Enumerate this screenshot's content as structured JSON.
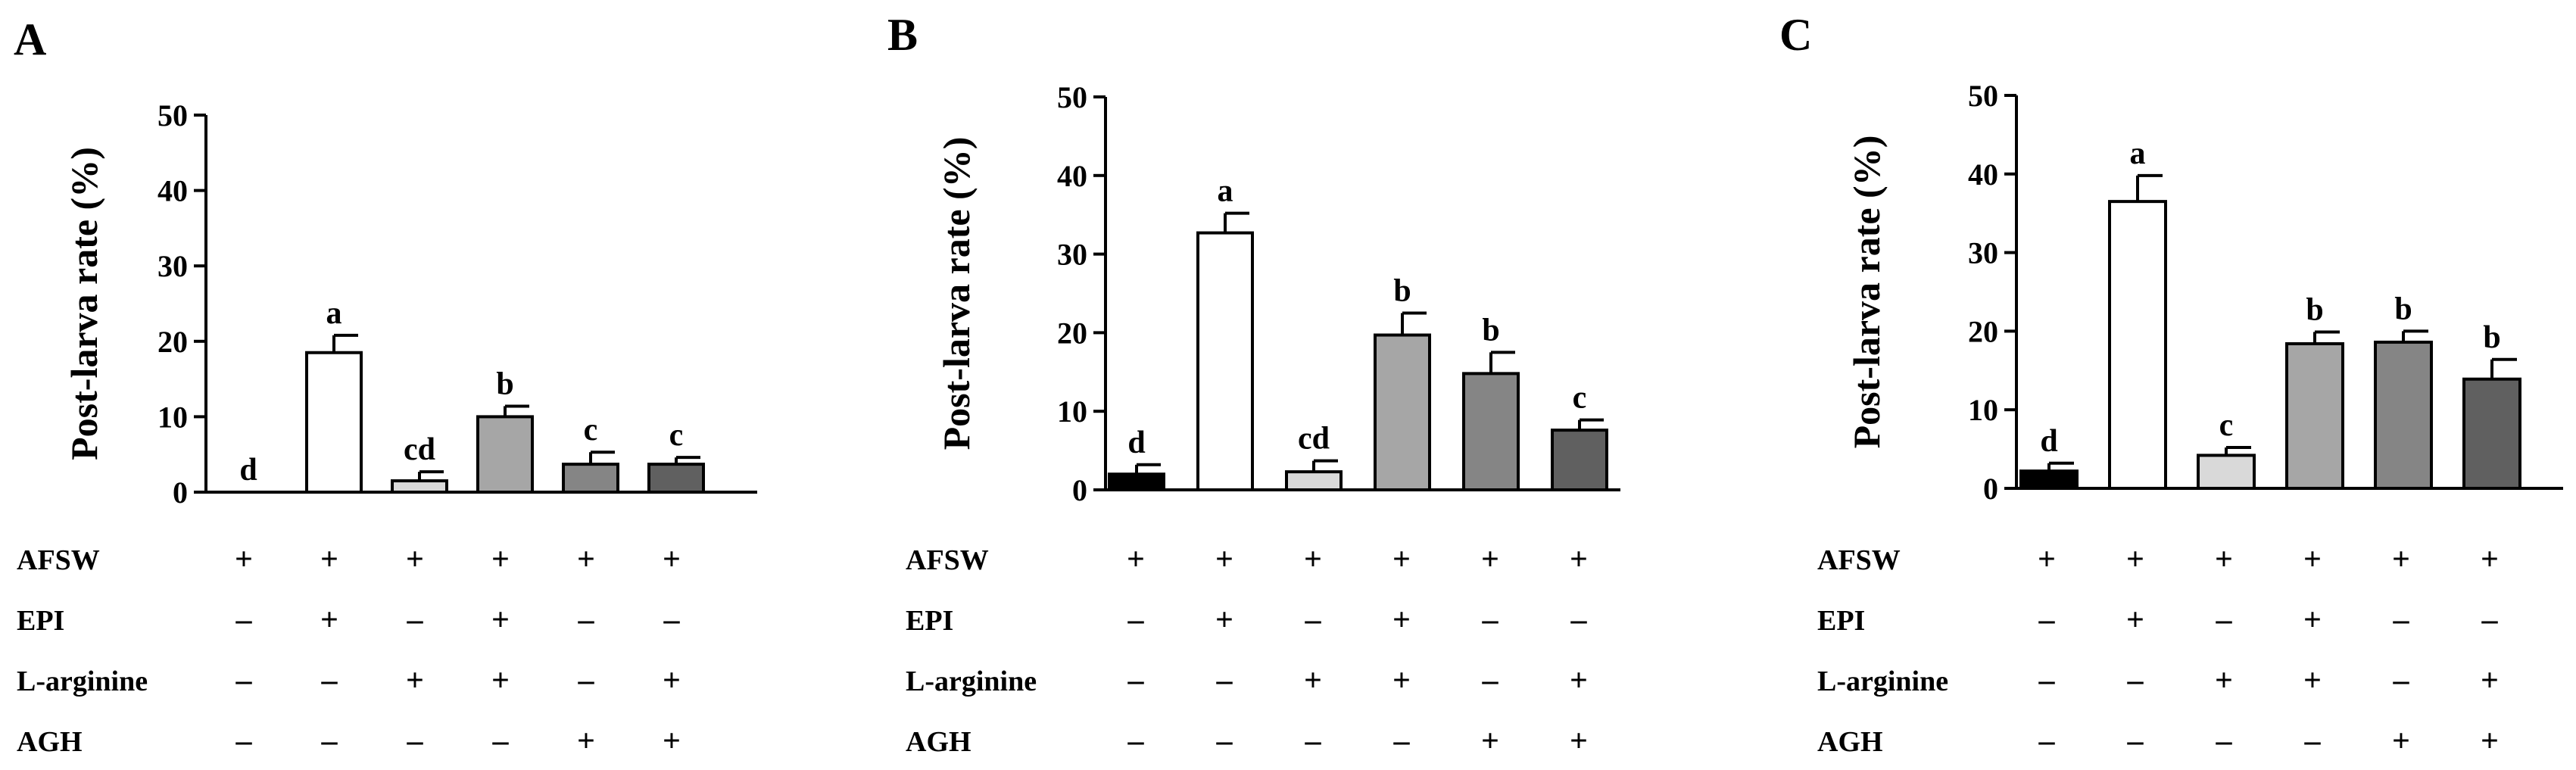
{
  "figure": {
    "row_labels": [
      "AFSW",
      "EPI",
      "L-arginine",
      "AGH"
    ],
    "treatment_matrix": [
      [
        "+",
        "+",
        "+",
        "+",
        "+",
        "+"
      ],
      [
        "–",
        "+",
        "–",
        "+",
        "–",
        "–"
      ],
      [
        "–",
        "–",
        "+",
        "+",
        "–",
        "+"
      ],
      [
        "–",
        "–",
        "–",
        "–",
        "+",
        "+"
      ]
    ],
    "bar_colors": [
      "#000000",
      "#ffffff",
      "#d9d9d9",
      "#a6a6a6",
      "#858585",
      "#606060"
    ]
  },
  "chart_data": [
    {
      "type": "bar",
      "panel": "A",
      "ylabel": "Post-larva rate (%)",
      "ylim": [
        0,
        50
      ],
      "yticks": [
        0,
        10,
        20,
        30,
        40,
        50
      ],
      "values": [
        0,
        18.5,
        1.5,
        10.0,
        3.7,
        3.7
      ],
      "errors": [
        0,
        2.3,
        1.2,
        1.4,
        1.6,
        0.9
      ],
      "letters": [
        "d",
        "a",
        "cd",
        "b",
        "c",
        "c"
      ]
    },
    {
      "type": "bar",
      "panel": "B",
      "ylabel": "Post-larva rate (%)",
      "ylim": [
        0,
        50
      ],
      "yticks": [
        0,
        10,
        20,
        30,
        40,
        50
      ],
      "values": [
        2.0,
        32.7,
        2.3,
        19.7,
        14.8,
        7.6
      ],
      "errors": [
        1.2,
        2.5,
        1.4,
        2.8,
        2.7,
        1.3
      ],
      "letters": [
        "d",
        "a",
        "cd",
        "b",
        "b",
        "c"
      ]
    },
    {
      "type": "bar",
      "panel": "C",
      "ylabel": "Post-larva rate (%)",
      "ylim": [
        0,
        50
      ],
      "yticks": [
        0,
        10,
        20,
        30,
        40,
        50
      ],
      "values": [
        2.2,
        36.5,
        4.2,
        18.4,
        18.6,
        13.9
      ],
      "errors": [
        1.0,
        3.3,
        1.0,
        1.5,
        1.4,
        2.5
      ],
      "letters": [
        "d",
        "a",
        "c",
        "b",
        "b",
        "b"
      ]
    }
  ]
}
